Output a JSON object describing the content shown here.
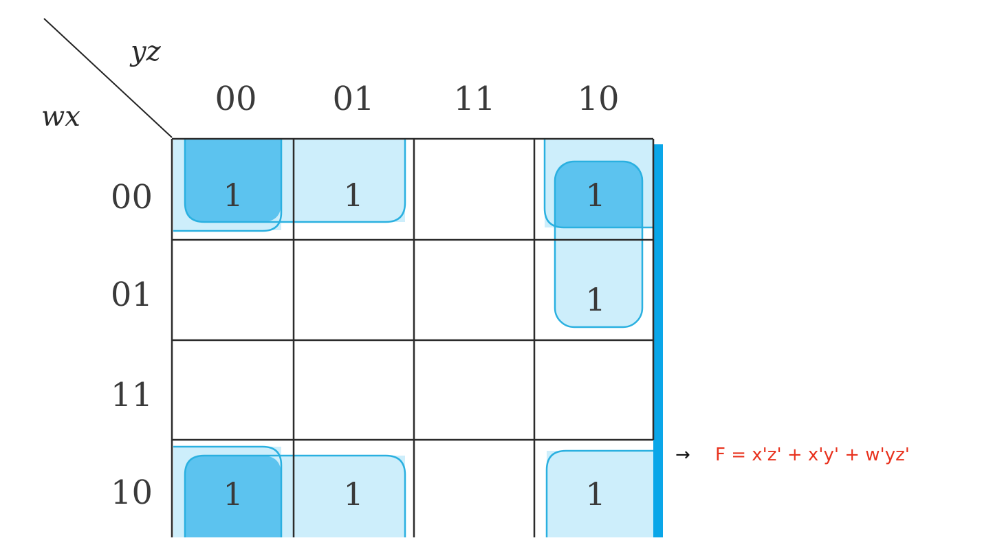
{
  "kmap": {
    "row_var": "wx",
    "col_var": "yz",
    "col_headers": [
      "00",
      "01",
      "11",
      "10"
    ],
    "row_headers": [
      "00",
      "01",
      "11",
      "10"
    ],
    "cells": [
      [
        "1",
        "1",
        "",
        "1"
      ],
      [
        "",
        "",
        "",
        "1"
      ],
      [
        "",
        "",
        "",
        ""
      ],
      [
        "1",
        "1",
        "",
        "1"
      ]
    ]
  },
  "groups": [
    {
      "term": "x'z'",
      "cells": [
        [
          0,
          0
        ],
        [
          0,
          3
        ],
        [
          3,
          0
        ],
        [
          3,
          3
        ]
      ]
    },
    {
      "term": "x'y'",
      "cells": [
        [
          0,
          0
        ],
        [
          0,
          1
        ],
        [
          3,
          0
        ],
        [
          3,
          1
        ]
      ]
    },
    {
      "term": "w'yz'",
      "cells": [
        [
          0,
          3
        ],
        [
          1,
          3
        ]
      ]
    }
  ],
  "colors": {
    "group_fill": "#cdeefb",
    "group_stroke": "#2ab0e0",
    "overlap_fill": "#5cc3ef",
    "grid": "#2b2b2b",
    "edge_bar": "#0aa6e8",
    "result": "#e8321e"
  },
  "result": {
    "arrow": "→",
    "expression": "F = x'z' + x'y' + w'yz'"
  }
}
